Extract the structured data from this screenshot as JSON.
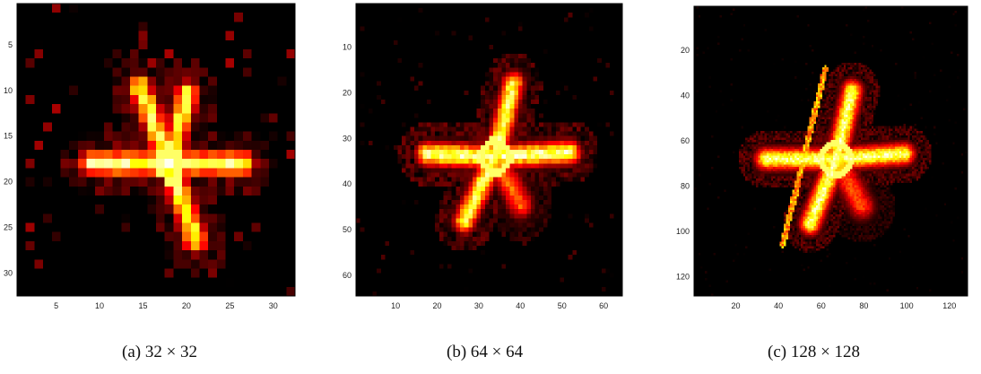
{
  "chart_data": [
    {
      "type": "heatmap",
      "caption": "(a) 32 × 32",
      "resolution": 32,
      "colormap": "hot",
      "xlim": [
        0.5,
        32.5
      ],
      "ylim": [
        0.5,
        32.5
      ],
      "y_inverted": true,
      "xticks": [
        5,
        10,
        15,
        20,
        25,
        30
      ],
      "yticks": [
        5,
        10,
        15,
        20,
        25,
        30
      ],
      "xtick_labels": [
        "5",
        "10",
        "15",
        "20",
        "25",
        "30"
      ],
      "ytick_labels": [
        "5",
        "10",
        "15",
        "20",
        "25",
        "30"
      ],
      "object": {
        "center": [
          18.0,
          18.0
        ],
        "arms": [
          {
            "angle_deg": 0,
            "length": 8.5,
            "width": 0.9,
            "intensity": 1.0
          },
          {
            "angle_deg": 180,
            "length": 9.0,
            "width": 0.9,
            "intensity": 1.0
          },
          {
            "angle_deg": 75,
            "length": 8.0,
            "width": 0.9,
            "intensity": 0.9
          },
          {
            "angle_deg": 112,
            "length": 9.0,
            "width": 0.9,
            "intensity": 0.9
          },
          {
            "angle_deg": 290,
            "length": 9.0,
            "width": 0.9,
            "intensity": 0.9
          }
        ],
        "hub_radius": 1.5,
        "noise": 0.25,
        "seed": 7
      }
    },
    {
      "type": "heatmap",
      "caption": "(b) 64 × 64",
      "resolution": 64,
      "colormap": "hot",
      "xlim": [
        0.5,
        64.5
      ],
      "ylim": [
        0.5,
        64.5
      ],
      "y_inverted": true,
      "xticks": [
        10,
        20,
        30,
        40,
        50,
        60
      ],
      "yticks": [
        10,
        20,
        30,
        40,
        50,
        60
      ],
      "xtick_labels": [
        "10",
        "20",
        "30",
        "40",
        "50",
        "60"
      ],
      "ytick_labels": [
        "10",
        "20",
        "30",
        "40",
        "50",
        "60"
      ],
      "object": {
        "center": [
          34.0,
          34.0
        ],
        "arms": [
          {
            "angle_deg": 3,
            "length": 18.0,
            "width": 1.7,
            "intensity": 1.0
          },
          {
            "angle_deg": 178,
            "length": 16.5,
            "width": 1.7,
            "intensity": 1.0
          },
          {
            "angle_deg": 75,
            "length": 16.5,
            "width": 1.7,
            "intensity": 0.95
          },
          {
            "angle_deg": 242,
            "length": 16.0,
            "width": 1.7,
            "intensity": 0.95
          },
          {
            "angle_deg": 300,
            "length": 12.0,
            "width": 2.0,
            "intensity": 0.6
          }
        ],
        "hub_radius": 3.0,
        "noise": 0.12,
        "seed": 11
      }
    },
    {
      "type": "heatmap",
      "caption": "(c) 128 × 128",
      "resolution": 128,
      "colormap": "hot",
      "xlim": [
        0.5,
        128.5
      ],
      "ylim": [
        0.5,
        128.5
      ],
      "y_inverted": true,
      "xticks": [
        20,
        40,
        60,
        80,
        100,
        120
      ],
      "yticks": [
        20,
        40,
        60,
        80,
        100,
        120
      ],
      "xtick_labels": [
        "20",
        "40",
        "60",
        "80",
        "100",
        "120"
      ],
      "ytick_labels": [
        "20",
        "40",
        "60",
        "80",
        "100",
        "120"
      ],
      "object": {
        "center": [
          67.0,
          68.0
        ],
        "arms": [
          {
            "angle_deg": 4,
            "length": 32.0,
            "width": 3.2,
            "intensity": 1.0
          },
          {
            "angle_deg": 180,
            "length": 33.0,
            "width": 3.2,
            "intensity": 1.0
          },
          {
            "angle_deg": 76,
            "length": 31.0,
            "width": 3.2,
            "intensity": 1.0
          },
          {
            "angle_deg": 247,
            "length": 31.0,
            "width": 3.2,
            "intensity": 1.0
          },
          {
            "angle_deg": 300,
            "length": 24.0,
            "width": 4.0,
            "intensity": 0.55
          }
        ],
        "hub_radius": 6.0,
        "noise": 0.05,
        "streak": {
          "from": [
            62,
            28
          ],
          "to": [
            42,
            106
          ],
          "width": 0.9,
          "intensity": 0.75
        },
        "seed": 19
      }
    }
  ]
}
